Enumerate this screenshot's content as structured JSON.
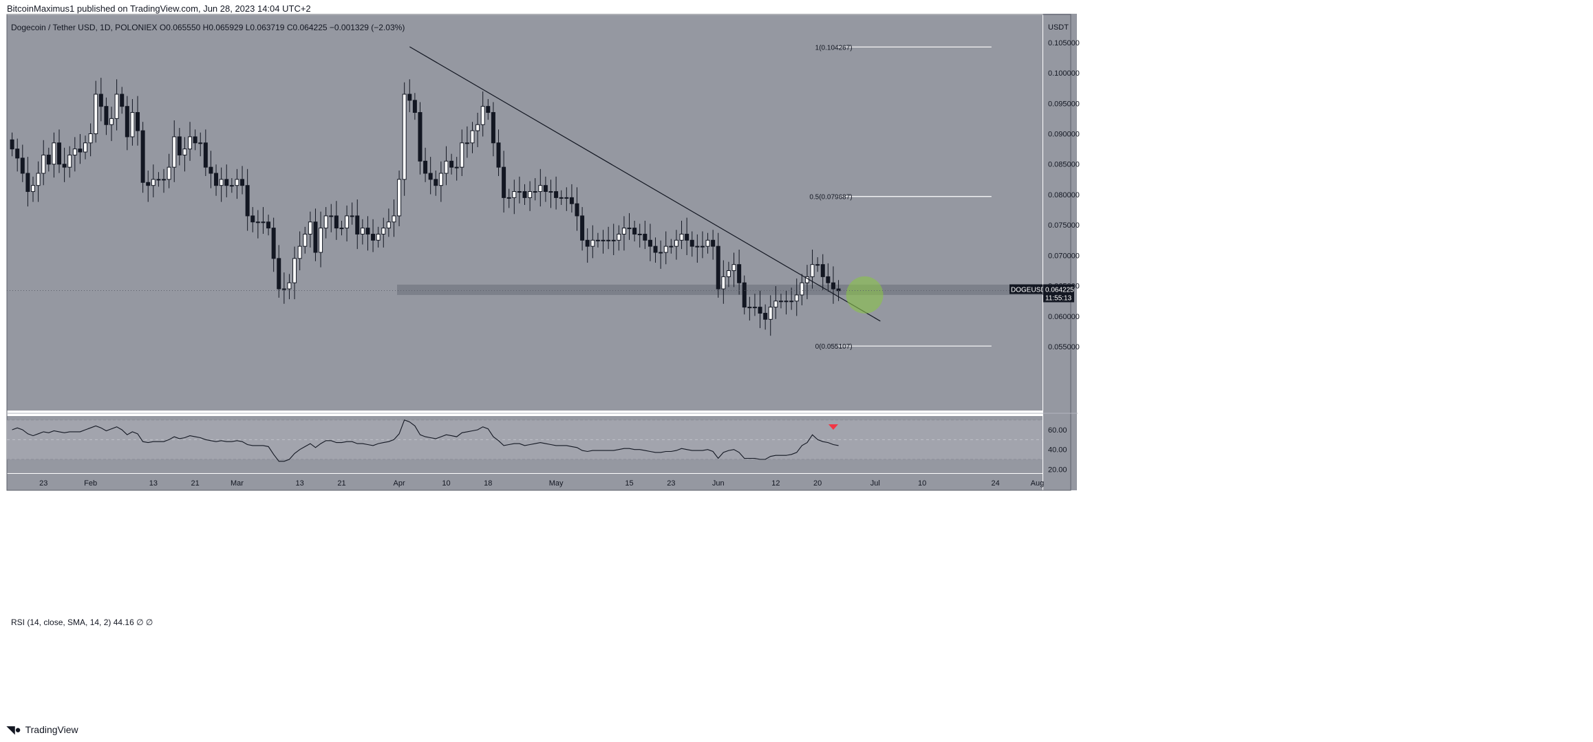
{
  "header": {
    "publisher": "BitcoinMaximus1 published on TradingView.com, Jun 28, 2023 14:04 UTC+2"
  },
  "symbol": {
    "name": "Dogecoin / Tether USD, 1D, POLONIEX",
    "o_label": "O",
    "open": "0.065550",
    "h_label": "H",
    "high": "0.065929",
    "l_label": "L",
    "low": "0.063719",
    "c_label": "C",
    "close": "0.064225",
    "change": "−0.001329 (−2.03%)"
  },
  "price_axis": {
    "currency": "USDT",
    "ticker": "DOGEUSDT",
    "last_price": "0.064225",
    "countdown": "11:55:13"
  },
  "rsi_label": "RSI (14, close, SMA, 14, 2)  44.16  ∅  ∅",
  "footer": {
    "brand": "TradingView"
  },
  "colors": {
    "pane_bg": "#9598a1",
    "up_fill": "#ffffff",
    "down_fill": "#131722",
    "support_zone": "#787b86",
    "highlight_circle": "#8bc34a",
    "rsi_marker": "#f23645"
  },
  "chart_data": [
    {
      "type": "candlestick",
      "title": "Dogecoin / Tether USD, 1D, POLONIEX",
      "ylabel": "USDT",
      "y_ticks": [
        0.055,
        0.06,
        0.065,
        0.07,
        0.075,
        0.08,
        0.085,
        0.09,
        0.095,
        0.1,
        0.105
      ],
      "y_tick_labels": [
        "0.055000",
        "0.060000",
        "0.065000",
        "0.070000",
        "0.075000",
        "0.080000",
        "0.085000",
        "0.090000",
        "0.095000",
        "0.100000",
        "0.105000"
      ],
      "ylim": [
        0.0445,
        0.1095
      ],
      "x_range": [
        "2023-01-16",
        "2023-08-02"
      ],
      "x_ticks": [
        {
          "date": "2023-01-23",
          "label": "23"
        },
        {
          "date": "2023-02-01",
          "label": "Feb"
        },
        {
          "date": "2023-02-13",
          "label": "13"
        },
        {
          "date": "2023-02-21",
          "label": "21"
        },
        {
          "date": "2023-03-01",
          "label": "Mar"
        },
        {
          "date": "2023-03-13",
          "label": "13"
        },
        {
          "date": "2023-03-21",
          "label": "21"
        },
        {
          "date": "2023-04-01",
          "label": "Apr"
        },
        {
          "date": "2023-04-10",
          "label": "10"
        },
        {
          "date": "2023-04-18",
          "label": "18"
        },
        {
          "date": "2023-05-01",
          "label": "May"
        },
        {
          "date": "2023-05-15",
          "label": "15"
        },
        {
          "date": "2023-05-23",
          "label": "23"
        },
        {
          "date": "2023-06-01",
          "label": "Jun"
        },
        {
          "date": "2023-06-12",
          "label": "12"
        },
        {
          "date": "2023-06-20",
          "label": "20"
        },
        {
          "date": "2023-07-01",
          "label": "Jul"
        },
        {
          "date": "2023-07-10",
          "label": "10"
        },
        {
          "date": "2023-07-24",
          "label": "24"
        },
        {
          "date": "2023-08-01",
          "label": "Aug"
        }
      ],
      "start_date": "2023-01-17",
      "close": [
        0.0875,
        0.086,
        0.0835,
        0.0805,
        0.0815,
        0.0835,
        0.0865,
        0.085,
        0.0885,
        0.085,
        0.0845,
        0.0865,
        0.0875,
        0.087,
        0.0885,
        0.09,
        0.0965,
        0.0945,
        0.0915,
        0.0925,
        0.0965,
        0.0945,
        0.0895,
        0.0935,
        0.0905,
        0.082,
        0.0815,
        0.0825,
        0.0825,
        0.0825,
        0.0845,
        0.0895,
        0.0865,
        0.0875,
        0.0895,
        0.0885,
        0.0885,
        0.0845,
        0.0835,
        0.0815,
        0.0825,
        0.0815,
        0.0815,
        0.0825,
        0.0815,
        0.0765,
        0.0755,
        0.0755,
        0.0755,
        0.0745,
        0.0695,
        0.0645,
        0.0645,
        0.0655,
        0.0695,
        0.0715,
        0.0735,
        0.0755,
        0.0705,
        0.0745,
        0.0765,
        0.0765,
        0.0745,
        0.0745,
        0.0765,
        0.0765,
        0.0735,
        0.0745,
        0.0735,
        0.0725,
        0.0735,
        0.0745,
        0.0755,
        0.0765,
        0.0825,
        0.0965,
        0.0955,
        0.0935,
        0.0855,
        0.0835,
        0.0825,
        0.0815,
        0.0835,
        0.0855,
        0.0845,
        0.0845,
        0.0885,
        0.0885,
        0.0905,
        0.0915,
        0.0945,
        0.0935,
        0.0885,
        0.0845,
        0.0795,
        0.0795,
        0.0805,
        0.0805,
        0.0795,
        0.0805,
        0.0805,
        0.0815,
        0.0805,
        0.0805,
        0.0795,
        0.0795,
        0.0795,
        0.0785,
        0.0765,
        0.0725,
        0.0715,
        0.0725,
        0.0725,
        0.0725,
        0.0725,
        0.0725,
        0.0735,
        0.0745,
        0.0745,
        0.0735,
        0.0735,
        0.0725,
        0.0715,
        0.0705,
        0.0705,
        0.0715,
        0.0715,
        0.0725,
        0.0735,
        0.0725,
        0.0715,
        0.0715,
        0.0715,
        0.0725,
        0.0715,
        0.0645,
        0.0665,
        0.0675,
        0.0685,
        0.0655,
        0.0615,
        0.0615,
        0.0615,
        0.0605,
        0.0595,
        0.0615,
        0.0625,
        0.0625,
        0.0625,
        0.0625,
        0.0635,
        0.0655,
        0.0665,
        0.0685,
        0.0685,
        0.0665,
        0.0655,
        0.0645,
        0.0642
      ],
      "trendline": {
        "from": {
          "date": "2023-04-03",
          "price": 0.1043
        },
        "to": {
          "date": "2023-07-02",
          "price": 0.0592
        }
      },
      "support_zone": [
        0.0635,
        0.0652
      ],
      "fibonacci": [
        {
          "level": "1",
          "price": 0.104267,
          "label": "1(0.104267)"
        },
        {
          "level": "0.5",
          "price": 0.079687,
          "label": "0.5(0.079687)"
        },
        {
          "level": "0",
          "price": 0.055107,
          "label": "0(0.055107)"
        }
      ],
      "highlight": {
        "date": "2023-06-29",
        "price": 0.0635
      }
    },
    {
      "type": "line",
      "title": "RSI (14, close, SMA, 14, 2)",
      "ylim": [
        16,
        74
      ],
      "y_ticks": [
        20,
        40,
        60
      ],
      "y_tick_labels": [
        "20.00",
        "40.00",
        "60.00"
      ],
      "band": [
        30,
        70
      ],
      "midline": 50,
      "signal_marker": {
        "date": "2023-06-23",
        "direction": "down"
      },
      "values": [
        60,
        62,
        60,
        56,
        54,
        56,
        58,
        57,
        59,
        58,
        57,
        58,
        58,
        58,
        60,
        62,
        64,
        62,
        59,
        61,
        63,
        60,
        55,
        58,
        56,
        48,
        47,
        48,
        48,
        48,
        50,
        53,
        51,
        52,
        54,
        53,
        52,
        50,
        49,
        48,
        49,
        48,
        48,
        49,
        48,
        45,
        44,
        44,
        44,
        43,
        35,
        28,
        28,
        30,
        36,
        40,
        43,
        46,
        42,
        46,
        49,
        49,
        47,
        47,
        48,
        48,
        46,
        46,
        45,
        44,
        46,
        47,
        48,
        50,
        56,
        70,
        68,
        64,
        55,
        53,
        52,
        51,
        53,
        55,
        54,
        53,
        57,
        58,
        59,
        60,
        63,
        61,
        53,
        49,
        44,
        45,
        46,
        46,
        44,
        45,
        46,
        47,
        46,
        45,
        44,
        44,
        44,
        43,
        42,
        39,
        38,
        39,
        39,
        39,
        39,
        39,
        40,
        41,
        41,
        40,
        40,
        39,
        38,
        37,
        37,
        38,
        38,
        39,
        41,
        40,
        39,
        39,
        39,
        40,
        38,
        31,
        37,
        39,
        40,
        37,
        31,
        31,
        31,
        30,
        30,
        33,
        34,
        34,
        34,
        35,
        37,
        44,
        47,
        55,
        50,
        48,
        47,
        45,
        44
      ]
    }
  ]
}
